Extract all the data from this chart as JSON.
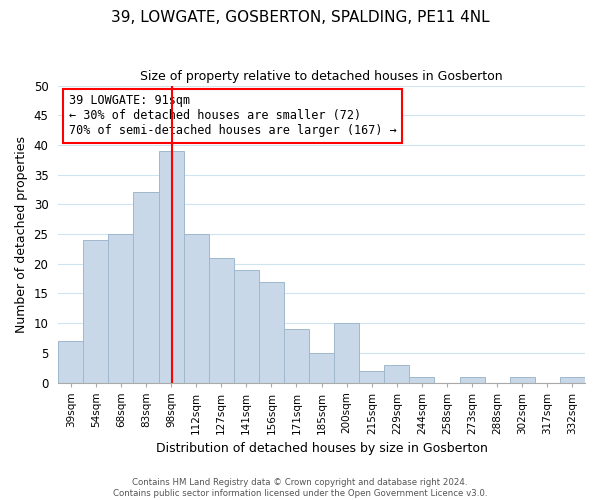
{
  "title": "39, LOWGATE, GOSBERTON, SPALDING, PE11 4NL",
  "subtitle": "Size of property relative to detached houses in Gosberton",
  "xlabel": "Distribution of detached houses by size in Gosberton",
  "ylabel": "Number of detached properties",
  "bar_values": [
    7,
    24,
    25,
    32,
    39,
    25,
    21,
    19,
    17,
    9,
    5,
    10,
    2,
    3,
    1,
    0,
    1,
    0,
    1,
    0,
    1
  ],
  "bar_labels": [
    "39sqm",
    "54sqm",
    "68sqm",
    "83sqm",
    "98sqm",
    "112sqm",
    "127sqm",
    "141sqm",
    "156sqm",
    "171sqm",
    "185sqm",
    "200sqm",
    "215sqm",
    "229sqm",
    "244sqm",
    "258sqm",
    "273sqm",
    "288sqm",
    "302sqm",
    "317sqm",
    "332sqm"
  ],
  "bar_color": "#c8d8e8",
  "bar_edge_color": "#a0b8cc",
  "ylim": [
    0,
    50
  ],
  "yticks": [
    0,
    5,
    10,
    15,
    20,
    25,
    30,
    35,
    40,
    45,
    50
  ],
  "annotation_title": "39 LOWGATE: 91sqm",
  "annotation_line1": "← 30% of detached houses are smaller (72)",
  "annotation_line2": "70% of semi-detached houses are larger (167) →",
  "footer_line1": "Contains HM Land Registry data © Crown copyright and database right 2024.",
  "footer_line2": "Contains public sector information licensed under the Open Government Licence v3.0.",
  "background_color": "#ffffff",
  "grid_color": "#d0e4f0"
}
